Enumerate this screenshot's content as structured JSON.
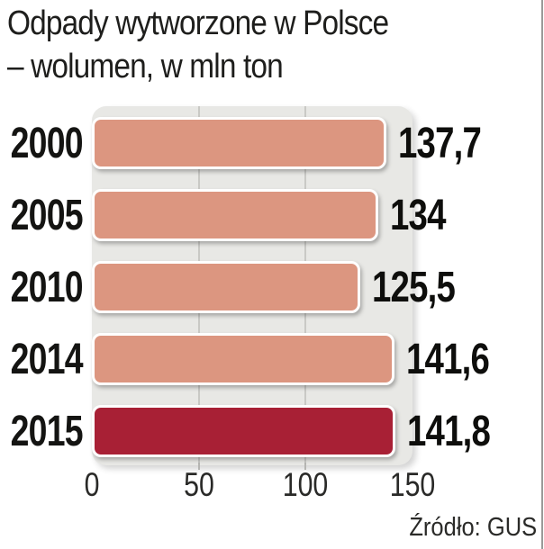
{
  "header": {
    "title_line1": "Odpady wytworzone w Polsce",
    "title_line2": "– wolumen, w mln ton"
  },
  "footer": {
    "source": "Źródło: GUS"
  },
  "chart_data": {
    "type": "bar",
    "orientation": "horizontal",
    "title": "Odpady wytworzone w Polsce – wolumen, w mln ton",
    "categories": [
      "2000",
      "2005",
      "2010",
      "2014",
      "2015"
    ],
    "values": [
      137.7,
      134,
      125.5,
      141.6,
      141.8
    ],
    "value_labels": [
      "137,7",
      "134",
      "125,5",
      "141,6",
      "141,8"
    ],
    "xlim": [
      0,
      150
    ],
    "xticks": [
      0,
      50,
      100,
      150
    ],
    "xtick_labels": [
      "0",
      "50",
      "100",
      "150"
    ],
    "grid": true,
    "legend": "none",
    "highlight_index": 4,
    "bar_color": "#dc9680",
    "highlight_color": "#a82035",
    "plot_bg": "#e8e8e5",
    "grid_color": "#c9c9c5",
    "source": "Źródło: GUS"
  }
}
